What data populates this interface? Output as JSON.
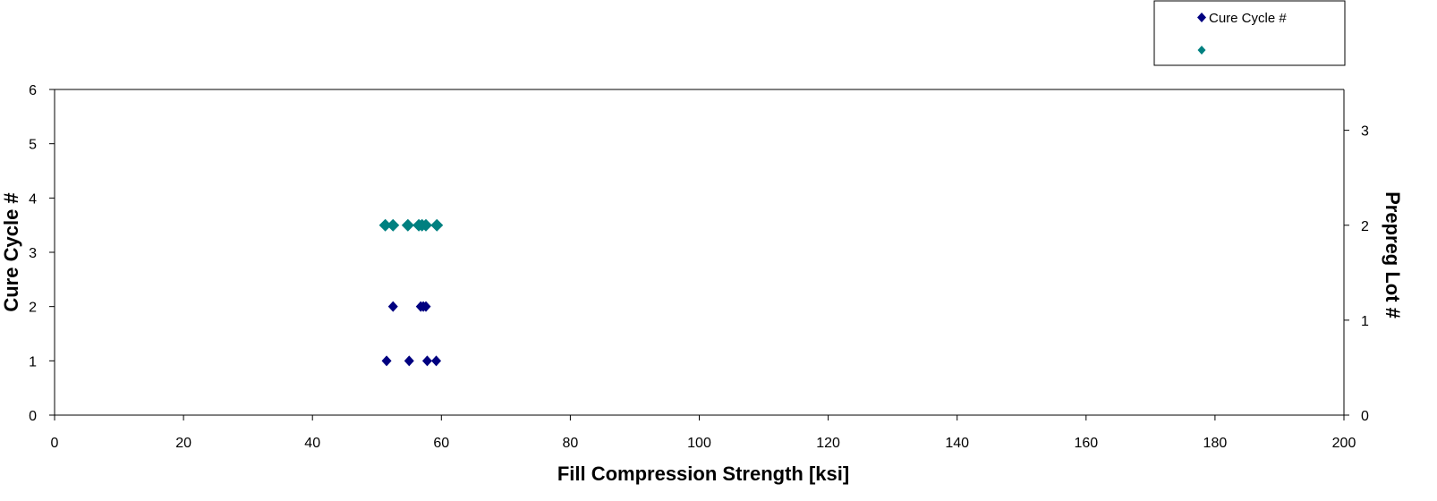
{
  "chart_data": {
    "type": "scatter",
    "xlabel": "Fill Compression Strength  [ksi]",
    "ylabel": "Cure Cycle #",
    "y2label": "Prepreg Lot #",
    "xlim": [
      0,
      200
    ],
    "ylim": [
      0,
      6
    ],
    "y2lim": [
      0,
      3.43
    ],
    "x_ticks": [
      0,
      20,
      40,
      60,
      80,
      100,
      120,
      140,
      160,
      180,
      200
    ],
    "y_ticks": [
      0,
      1,
      2,
      3,
      4,
      5,
      6
    ],
    "y2_ticks": [
      0,
      1,
      2,
      3
    ],
    "grid": false,
    "legend_position": "top-right",
    "series": [
      {
        "name": "Cure Cycle #",
        "axis": "left",
        "color": "#000080",
        "marker": "diamond",
        "points": [
          {
            "x": 51.5,
            "y": 1
          },
          {
            "x": 55.0,
            "y": 1
          },
          {
            "x": 57.8,
            "y": 1
          },
          {
            "x": 59.2,
            "y": 1
          },
          {
            "x": 52.5,
            "y": 2
          },
          {
            "x": 56.8,
            "y": 2
          },
          {
            "x": 57.2,
            "y": 2
          },
          {
            "x": 57.6,
            "y": 2
          }
        ]
      },
      {
        "name": "",
        "axis": "right",
        "color": "#008080",
        "marker": "diamond",
        "points": [
          {
            "x": 51.3,
            "y": 2
          },
          {
            "x": 52.5,
            "y": 2
          },
          {
            "x": 54.8,
            "y": 2
          },
          {
            "x": 56.5,
            "y": 2
          },
          {
            "x": 57.0,
            "y": 2
          },
          {
            "x": 57.6,
            "y": 2
          },
          {
            "x": 59.3,
            "y": 2
          }
        ]
      }
    ]
  }
}
